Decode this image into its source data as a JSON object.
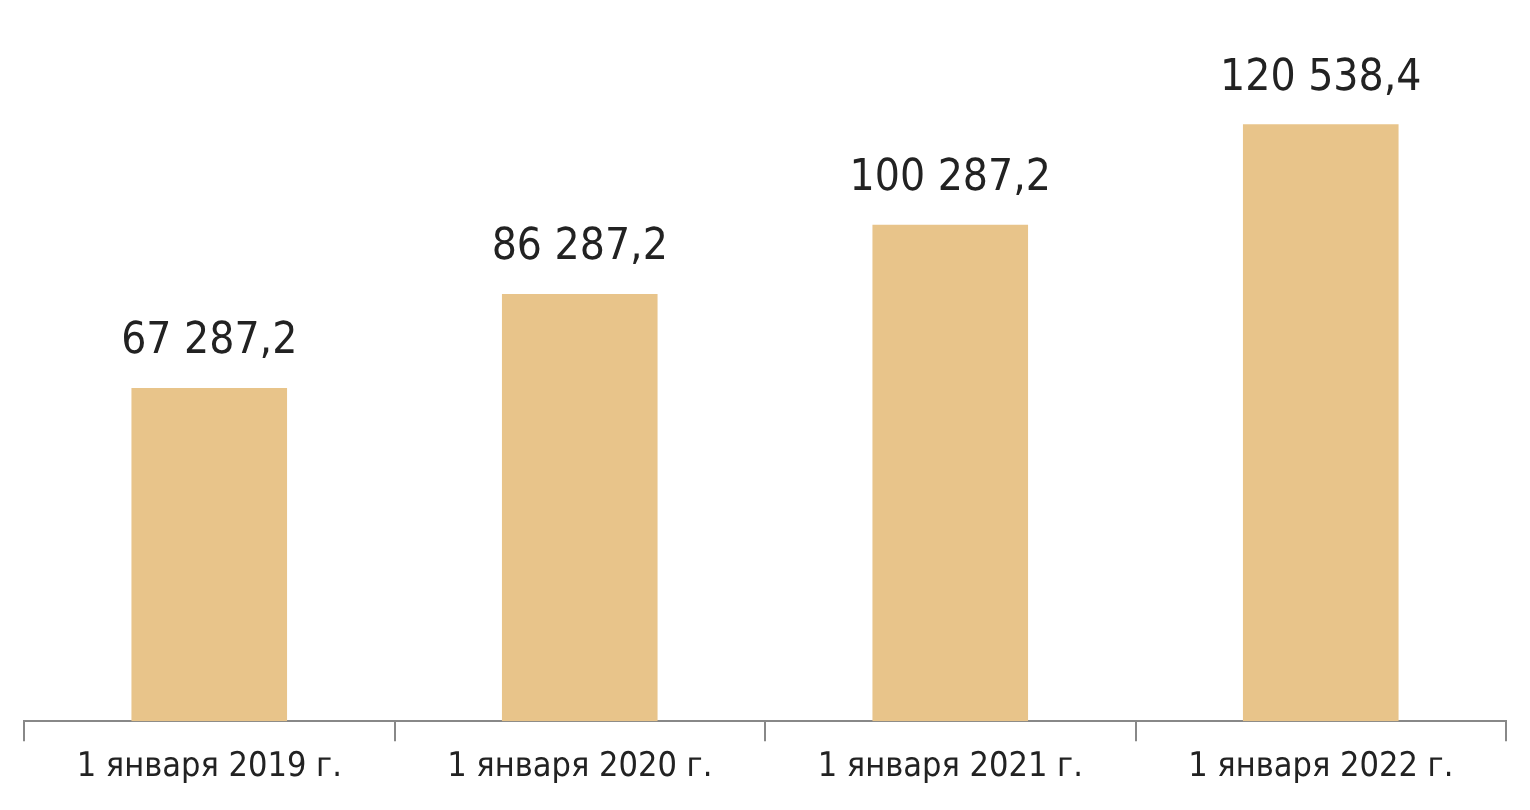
{
  "chart_data": {
    "type": "bar",
    "categories": [
      "1 января 2019 г.",
      "1 января 2020 г.",
      "1 января 2021 г.",
      "1 января 2022 г."
    ],
    "values": [
      67287.2,
      86287.2,
      100287.2,
      120538.4
    ],
    "value_labels": [
      "67 287,2",
      "86 287,2",
      "100 287,2",
      "120 538,4"
    ],
    "color": "#e8c48a"
  }
}
